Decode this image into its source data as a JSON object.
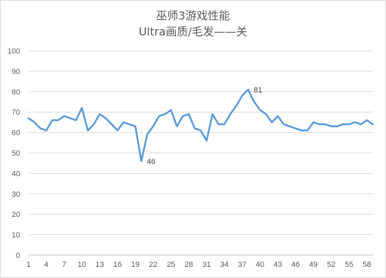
{
  "chart_data": {
    "type": "line",
    "title_lines": [
      "巫师3游戏性能",
      "Ultra画质/毛发——关"
    ],
    "xlabel": "",
    "ylabel": "",
    "x": [
      1,
      2,
      3,
      4,
      5,
      6,
      7,
      8,
      9,
      10,
      11,
      12,
      13,
      14,
      15,
      16,
      17,
      18,
      19,
      20,
      21,
      22,
      23,
      24,
      25,
      26,
      27,
      28,
      29,
      30,
      31,
      32,
      33,
      34,
      35,
      36,
      37,
      38,
      39,
      40,
      41,
      42,
      43,
      44,
      45,
      46,
      47,
      48,
      49,
      50,
      51,
      52,
      53,
      54,
      55,
      56,
      57,
      58,
      59
    ],
    "x_tick_labels": [
      "1",
      "4",
      "7",
      "10",
      "13",
      "16",
      "19",
      "22",
      "25",
      "28",
      "31",
      "34",
      "37",
      "40",
      "43",
      "46",
      "49",
      "52",
      "55",
      "58"
    ],
    "ylim": [
      0,
      100
    ],
    "y_ticks": [
      0,
      10,
      20,
      30,
      40,
      50,
      60,
      70,
      80,
      90,
      100
    ],
    "grid": "horizontal",
    "legend": "none",
    "series": [
      {
        "color": "#5b9bd5",
        "values": [
          67,
          65,
          62,
          61,
          66,
          66,
          68,
          67,
          66,
          72,
          61,
          64,
          69,
          67,
          64,
          61,
          65,
          64,
          63,
          46,
          59,
          63,
          68,
          69,
          71,
          63,
          68,
          69,
          62,
          61,
          56,
          69,
          64,
          64,
          69,
          73,
          78,
          81,
          75,
          71,
          69,
          65,
          68,
          64,
          63,
          62,
          61,
          61,
          65,
          64,
          64,
          63,
          63,
          64,
          64,
          65,
          64,
          66,
          64
        ]
      }
    ],
    "annotations": [
      {
        "x": 20,
        "text": "46"
      },
      {
        "x": 38,
        "text": "81"
      }
    ]
  }
}
